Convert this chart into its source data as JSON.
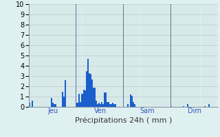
{
  "xlabel": "Précipitations 24h ( mm )",
  "ylim": [
    0,
    10
  ],
  "yticks": [
    0,
    1,
    2,
    3,
    4,
    5,
    6,
    7,
    8,
    9,
    10
  ],
  "background_color": "#dff0f0",
  "bar_color": "#1a5fcc",
  "grid_color_h": "#b8cccc",
  "grid_color_v": "#c0d0d0",
  "sep_color": "#6070a0",
  "day_labels": [
    "Jeu",
    "Ven",
    "Sam",
    "Dim"
  ],
  "n_bars": 136,
  "day_sep_bars": [
    34,
    68,
    102
  ],
  "day_label_bars": [
    17,
    51,
    85,
    119
  ],
  "values": [
    0.4,
    0.0,
    0.6,
    0.0,
    0.0,
    0.0,
    0.0,
    0.0,
    0.0,
    0.0,
    0.0,
    0.0,
    0.0,
    0.0,
    0.0,
    0.0,
    0.9,
    0.4,
    0.3,
    0.3,
    0.0,
    0.0,
    0.0,
    0.0,
    1.5,
    1.0,
    2.6,
    0.0,
    0.0,
    0.0,
    0.0,
    0.0,
    0.0,
    0.0,
    0.4,
    0.4,
    1.3,
    0.5,
    1.3,
    1.7,
    1.6,
    3.5,
    4.7,
    3.3,
    3.2,
    2.7,
    1.9,
    1.9,
    0.6,
    0.3,
    0.4,
    0.3,
    0.5,
    0.3,
    1.4,
    1.4,
    0.5,
    0.5,
    0.3,
    0.3,
    0.4,
    0.3,
    0.3,
    0.0,
    0.0,
    0.0,
    0.0,
    0.0,
    0.0,
    0.0,
    0.0,
    0.3,
    0.0,
    1.2,
    1.1,
    0.5,
    0.3,
    0.0,
    0.0,
    0.0,
    0.0,
    0.0,
    0.0,
    0.0,
    0.0,
    0.0,
    0.0,
    0.0,
    0.0,
    0.0,
    0.0,
    0.0,
    0.0,
    0.0,
    0.0,
    0.0,
    0.0,
    0.0,
    0.0,
    0.0,
    0.0,
    0.0,
    0.05,
    0.0,
    0.0,
    0.0,
    0.0,
    0.0,
    0.0,
    0.0,
    0.0,
    0.05,
    0.0,
    0.0,
    0.3,
    0.0,
    0.0,
    0.0,
    0.0,
    0.0,
    0.0,
    0.0,
    0.0,
    0.0,
    0.0,
    0.0,
    0.05,
    0.0,
    0.0,
    0.3
  ]
}
